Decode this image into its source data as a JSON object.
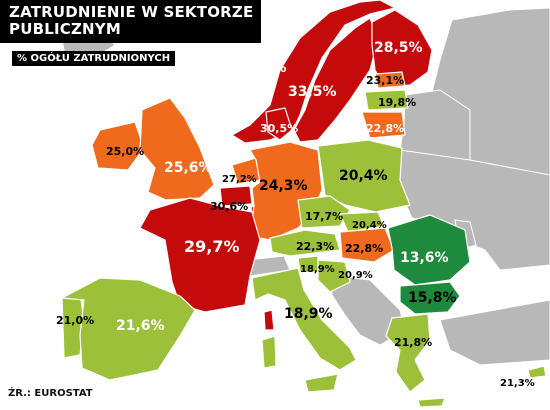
{
  "title": {
    "line1": "ZATRUDNIENIE W SEKTORZE",
    "line2": "PUBLICZNYM"
  },
  "subtitle": "% OGÓŁU ZATRUDNIONYCH",
  "source": "ŹR.: EUROSTAT",
  "colors": {
    "sea": "#ffffff",
    "non_data_land": "#b8b8b8",
    "high": "#c40a0a",
    "medium": "#ef6a1c",
    "low": "#9cc03a",
    "lowest": "#1e8a3e"
  },
  "values": {
    "norway": "35,2%",
    "sweden": "33,5%",
    "finland": "28,5%",
    "estonia": "23,1%",
    "latvia": "19,8%",
    "lithuania": "22,8%",
    "denmark": "30,5%",
    "ireland": "25,0%",
    "uk": "25,6%",
    "netherlands": "27,2%",
    "belgium": "30,6%",
    "luxembourg": "29,7%",
    "germany": "24,3%",
    "poland": "20,4%",
    "czechia": "17,7%",
    "slovakia": "20,4%",
    "austria": "22,3%",
    "hungary": "22,8%",
    "slovenia": "18,9%",
    "croatia": "20,9%",
    "romania": "13,6%",
    "bulgaria": "15,8%",
    "france": "29,7%",
    "portugal": "21,0%",
    "spain": "21,6%",
    "italy": "18,9%",
    "greece": "21,8%",
    "cyprus": "21,3%"
  }
}
